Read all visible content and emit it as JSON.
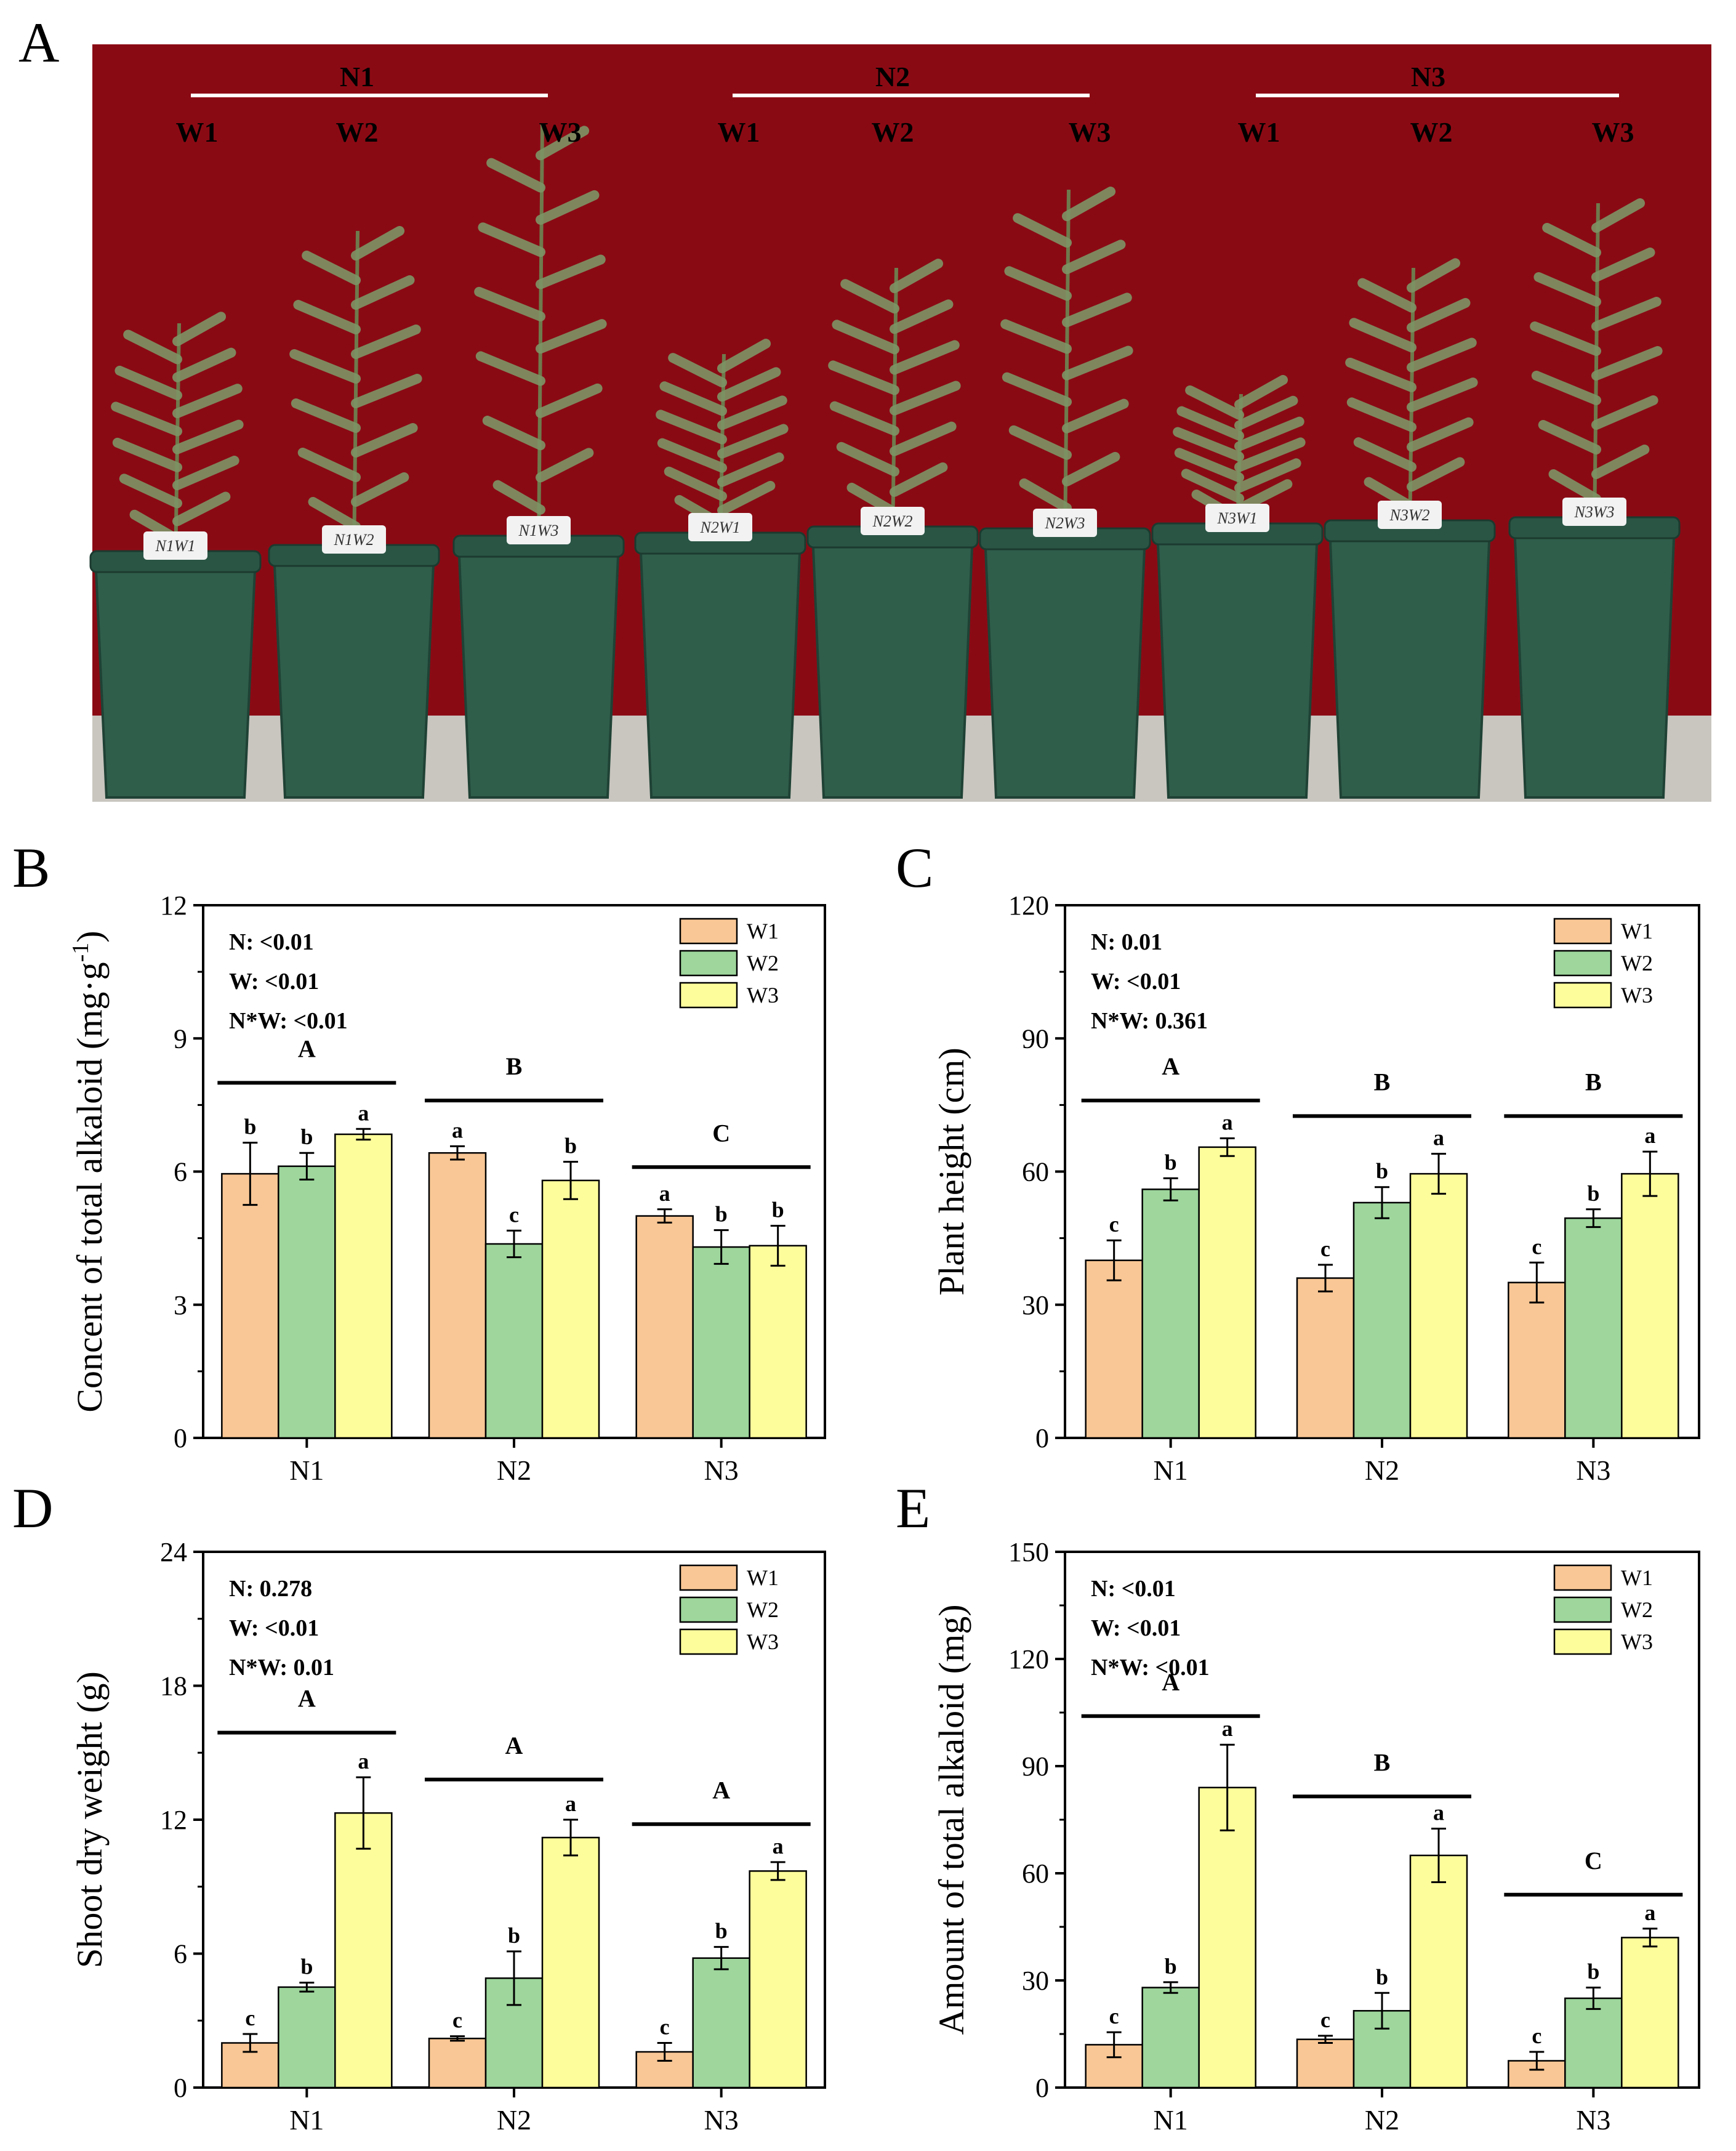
{
  "figure": {
    "panel_letters": [
      "A",
      "B",
      "C",
      "D",
      "E"
    ],
    "colors": {
      "W1": "#f9c795",
      "W2": "#9ed69c",
      "W3": "#fdfd9c",
      "backdrop": "#8a0a14",
      "pot": "#2f5e4b",
      "ground": "#c9c6bf",
      "foliage": "#7e9465"
    }
  },
  "photo": {
    "groups": [
      {
        "label": "N1",
        "treatments": [
          "W1",
          "W2",
          "W3"
        ]
      },
      {
        "label": "N2",
        "treatments": [
          "W1",
          "W2",
          "W3"
        ]
      },
      {
        "label": "N3",
        "treatments": [
          "W1",
          "W2",
          "W3"
        ]
      }
    ],
    "pot_tags": [
      "N1W1",
      "N1W2",
      "N1W3",
      "N2W1",
      "N2W2",
      "N2W3",
      "N3W1",
      "N3W2",
      "N3W3"
    ]
  },
  "chart_data": [
    {
      "panel": "B",
      "type": "bar",
      "ylabel": "Concent of total alkaloid (mg·g",
      "ylabel_sup": "-1",
      "ylabel_tail": ")",
      "categories": [
        "N1",
        "N2",
        "N3"
      ],
      "ylim": [
        0,
        12
      ],
      "yticks": [
        0,
        3,
        6,
        9,
        12
      ],
      "series": [
        {
          "name": "W1",
          "values": [
            5.95,
            6.42,
            5.0
          ],
          "errors": [
            0.7,
            0.15,
            0.15
          ],
          "letters": [
            "b",
            "a",
            "a"
          ]
        },
        {
          "name": "W2",
          "values": [
            6.12,
            4.37,
            4.3
          ],
          "errors": [
            0.3,
            0.3,
            0.38
          ],
          "letters": [
            "b",
            "c",
            "b"
          ]
        },
        {
          "name": "W3",
          "values": [
            6.84,
            5.8,
            4.33
          ],
          "errors": [
            0.12,
            0.42,
            0.45
          ],
          "letters": [
            "a",
            "b",
            "b"
          ]
        }
      ],
      "group_letters": [
        "A",
        "B",
        "C"
      ],
      "group_line_y": [
        8.0,
        7.6,
        6.1
      ],
      "stats": [
        "N: <0.01",
        "W: <0.01",
        "N*W: <0.01"
      ],
      "legend": [
        "W1",
        "W2",
        "W3"
      ]
    },
    {
      "panel": "C",
      "type": "bar",
      "ylabel": "Plant height (cm)",
      "categories": [
        "N1",
        "N2",
        "N3"
      ],
      "ylim": [
        0,
        120
      ],
      "yticks": [
        0,
        30,
        60,
        90,
        120
      ],
      "series": [
        {
          "name": "W1",
          "values": [
            40,
            36,
            35
          ],
          "errors": [
            4.5,
            3,
            4.5
          ],
          "letters": [
            "c",
            "c",
            "c"
          ]
        },
        {
          "name": "W2",
          "values": [
            56,
            53,
            49.5
          ],
          "errors": [
            2.5,
            3.5,
            2
          ],
          "letters": [
            "b",
            "b",
            "b"
          ]
        },
        {
          "name": "W3",
          "values": [
            65.5,
            59.5,
            59.5
          ],
          "errors": [
            2,
            4.5,
            5
          ],
          "letters": [
            "a",
            "a",
            "a"
          ]
        }
      ],
      "group_letters": [
        "A",
        "B",
        "B"
      ],
      "group_line_y": [
        76,
        72.5,
        72.5
      ],
      "stats": [
        "N: 0.01",
        "W: <0.01",
        "N*W: 0.361"
      ],
      "legend": [
        "W1",
        "W2",
        "W3"
      ]
    },
    {
      "panel": "D",
      "type": "bar",
      "ylabel": "Shoot dry weight (g)",
      "categories": [
        "N1",
        "N2",
        "N3"
      ],
      "ylim": [
        0,
        24
      ],
      "yticks": [
        0,
        6,
        12,
        18,
        24
      ],
      "series": [
        {
          "name": "W1",
          "values": [
            2.0,
            2.2,
            1.6
          ],
          "errors": [
            0.4,
            0.1,
            0.4
          ],
          "letters": [
            "c",
            "c",
            "c"
          ]
        },
        {
          "name": "W2",
          "values": [
            4.5,
            4.9,
            5.8
          ],
          "errors": [
            0.2,
            1.2,
            0.5
          ],
          "letters": [
            "b",
            "b",
            "b"
          ]
        },
        {
          "name": "W3",
          "values": [
            12.3,
            11.2,
            9.7
          ],
          "errors": [
            1.6,
            0.8,
            0.4
          ],
          "letters": [
            "a",
            "a",
            "a"
          ]
        }
      ],
      "group_letters": [
        "A",
        "A",
        "A"
      ],
      "group_line_y": [
        15.9,
        13.8,
        11.8
      ],
      "stats": [
        "N: 0.278",
        "W: <0.01",
        "N*W: 0.01"
      ],
      "legend": [
        "W1",
        "W2",
        "W3"
      ]
    },
    {
      "panel": "E",
      "type": "bar",
      "ylabel": "Amount of total alkaloid (mg)",
      "categories": [
        "N1",
        "N2",
        "N3"
      ],
      "ylim": [
        0,
        150
      ],
      "yticks": [
        0,
        30,
        60,
        90,
        120,
        150
      ],
      "series": [
        {
          "name": "W1",
          "values": [
            12,
            13.5,
            7.5
          ],
          "errors": [
            3.5,
            1,
            2.5
          ],
          "letters": [
            "c",
            "c",
            "c"
          ]
        },
        {
          "name": "W2",
          "values": [
            28,
            21.5,
            25
          ],
          "errors": [
            1.5,
            5,
            3
          ],
          "letters": [
            "b",
            "b",
            "b"
          ]
        },
        {
          "name": "W3",
          "values": [
            84,
            65,
            42
          ],
          "errors": [
            12,
            7.5,
            2.5
          ],
          "letters": [
            "a",
            "a",
            "a"
          ]
        }
      ],
      "group_letters": [
        "A",
        "B",
        "C"
      ],
      "group_line_y": [
        104,
        81.5,
        54
      ],
      "stats": [
        "N: <0.01",
        "W: <0.01",
        "N*W: <0.01"
      ],
      "legend": [
        "W1",
        "W2",
        "W3"
      ]
    }
  ]
}
